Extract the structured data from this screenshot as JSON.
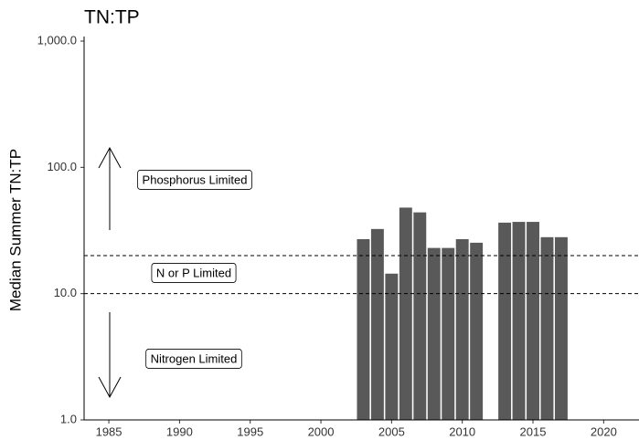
{
  "chart_data": {
    "type": "bar",
    "title": "TN:TP",
    "y_label": "Median Summer TN:TP",
    "x": [
      2003,
      2004,
      2005,
      2006,
      2007,
      2008,
      2009,
      2010,
      2011,
      2013,
      2014,
      2015,
      2016,
      2017
    ],
    "values": [
      27,
      32.5,
      14.4,
      48,
      44,
      23,
      23,
      27,
      25.3,
      36.5,
      37,
      37,
      28,
      28
    ],
    "color": "#595959",
    "log_y": true,
    "ylim": [
      1,
      1000
    ],
    "yticks": [
      {
        "value": 1,
        "label": "1.0"
      },
      {
        "value": 10,
        "label": "10.0"
      },
      {
        "value": 100,
        "label": "100.0"
      },
      {
        "value": 1000,
        "label": "1,000.0"
      }
    ],
    "xlim": [
      1983.25,
      2022.5
    ],
    "xticks": [
      1985,
      1990,
      1995,
      2000,
      2005,
      2010,
      2015,
      2020
    ],
    "reference_lines": [
      10,
      20
    ],
    "annotations": [
      "Phosphorus Limited",
      "N or P Limited",
      "Nitrogen Limited"
    ]
  }
}
